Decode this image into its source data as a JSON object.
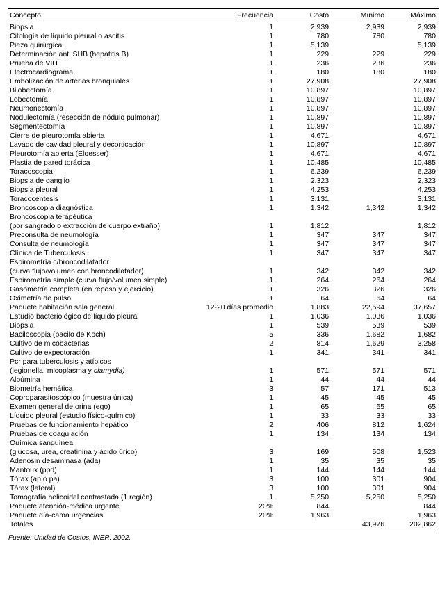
{
  "headers": {
    "concepto": "Concepto",
    "frecuencia": "Frecuencia",
    "costo": "Costo",
    "minimo": "Mínimo",
    "maximo": "Máximo"
  },
  "rows": [
    {
      "concepto": "Biopsia",
      "frecuencia": "1",
      "costo": "2,939",
      "minimo": "2,939",
      "maximo": "2,939"
    },
    {
      "concepto": "Citología de líquido pleural o ascitis",
      "frecuencia": "1",
      "costo": "780",
      "minimo": "780",
      "maximo": "780"
    },
    {
      "concepto": "Pieza quirúrgica",
      "frecuencia": "1",
      "costo": "5,139",
      "minimo": "",
      "maximo": "5,139"
    },
    {
      "concepto": "Determinación anti SHB (hepatitis B)",
      "frecuencia": "1",
      "costo": "229",
      "minimo": "229",
      "maximo": "229"
    },
    {
      "concepto": "Prueba de VIH",
      "frecuencia": "1",
      "costo": "236",
      "minimo": "236",
      "maximo": "236"
    },
    {
      "concepto": "Electrocardiograma",
      "frecuencia": "1",
      "costo": "180",
      "minimo": "180",
      "maximo": "180"
    },
    {
      "concepto": "Embolización de arterias bronquiales",
      "frecuencia": "1",
      "costo": "27,908",
      "minimo": "",
      "maximo": "27,908"
    },
    {
      "concepto": "Bilobectomía",
      "frecuencia": "1",
      "costo": "10,897",
      "minimo": "",
      "maximo": "10,897"
    },
    {
      "concepto": "Lobectomía",
      "frecuencia": "1",
      "costo": "10,897",
      "minimo": "",
      "maximo": "10,897"
    },
    {
      "concepto": "Neumonectomía",
      "frecuencia": "1",
      "costo": "10,897",
      "minimo": "",
      "maximo": "10,897"
    },
    {
      "concepto": "Nodulectomía (resección de nódulo pulmonar)",
      "frecuencia": "1",
      "costo": "10,897",
      "minimo": "",
      "maximo": "10,897"
    },
    {
      "concepto": "Segmentectomía",
      "frecuencia": "1",
      "costo": "10,897",
      "minimo": "",
      "maximo": "10,897"
    },
    {
      "concepto": "Cierre de pleurotomía abierta",
      "frecuencia": "1",
      "costo": "4,671",
      "minimo": "",
      "maximo": "4,671"
    },
    {
      "concepto": "Lavado de cavidad pleural y decorticación",
      "frecuencia": "1",
      "costo": "10,897",
      "minimo": "",
      "maximo": "10,897"
    },
    {
      "concepto": "Pleurotomía abierta (Eloesser)",
      "frecuencia": "1",
      "costo": "4,671",
      "minimo": "",
      "maximo": "4,671"
    },
    {
      "concepto": "Plastia de pared torácica",
      "frecuencia": "1",
      "costo": "10,485",
      "minimo": "",
      "maximo": "10,485"
    },
    {
      "concepto": "Toracoscopia",
      "frecuencia": "1",
      "costo": "6,239",
      "minimo": "",
      "maximo": "6,239"
    },
    {
      "concepto": "Biopsia de ganglio",
      "frecuencia": "1",
      "costo": "2,323",
      "minimo": "",
      "maximo": "2,323"
    },
    {
      "concepto": "Biopsia pleural",
      "frecuencia": "1",
      "costo": "4,253",
      "minimo": "",
      "maximo": "4,253"
    },
    {
      "concepto": "Toracocentesis",
      "frecuencia": "1",
      "costo": "3,131",
      "minimo": "",
      "maximo": "3,131"
    },
    {
      "concepto": "Broncoscopia diagnóstica",
      "frecuencia": "1",
      "costo": "1,342",
      "minimo": "1,342",
      "maximo": "1,342"
    },
    {
      "concepto": "Broncoscopia terapéutica",
      "frecuencia": "",
      "costo": "",
      "minimo": "",
      "maximo": ""
    },
    {
      "concepto": "(por sangrado o extracción de cuerpo extraño)",
      "frecuencia": "1",
      "costo": "1,812",
      "minimo": "",
      "maximo": "1,812"
    },
    {
      "concepto": "Preconsulta de neumología",
      "frecuencia": "1",
      "costo": "347",
      "minimo": "347",
      "maximo": "347"
    },
    {
      "concepto": "Consulta de neumología",
      "frecuencia": "1",
      "costo": "347",
      "minimo": "347",
      "maximo": "347"
    },
    {
      "concepto": "Clínica de Tuberculosis",
      "frecuencia": "1",
      "costo": "347",
      "minimo": "347",
      "maximo": "347"
    },
    {
      "concepto": "Espirometría c/broncodilatador",
      "frecuencia": "",
      "costo": "",
      "minimo": "",
      "maximo": ""
    },
    {
      "concepto": "(curva flujo/volumen con broncodilatador)",
      "frecuencia": "1",
      "costo": "342",
      "minimo": "342",
      "maximo": "342"
    },
    {
      "concepto": "Espirometría simple (curva flujo/volumen simple)",
      "frecuencia": "1",
      "costo": "264",
      "minimo": "264",
      "maximo": "264"
    },
    {
      "concepto": "Gasometría completa (en reposo y ejercicio)",
      "frecuencia": "1",
      "costo": "326",
      "minimo": "326",
      "maximo": "326"
    },
    {
      "concepto": "Oximetría de pulso",
      "frecuencia": "1",
      "costo": "64",
      "minimo": "64",
      "maximo": "64"
    },
    {
      "concepto": "Paquete habitación sala general",
      "frecuencia": "12-20 días promedio",
      "costo": "1,883",
      "minimo": "22,594",
      "maximo": "37,657"
    },
    {
      "concepto": "Estudio bacteriológico de líquido pleural",
      "frecuencia": "1",
      "costo": "1,036",
      "minimo": "1,036",
      "maximo": "1,036"
    },
    {
      "concepto": "Biopsia",
      "frecuencia": "1",
      "costo": "539",
      "minimo": "539",
      "maximo": "539"
    },
    {
      "concepto": "Baciloscopia (bacilo de Koch)",
      "frecuencia": "5",
      "costo": "336",
      "minimo": "1,682",
      "maximo": "1,682"
    },
    {
      "concepto": "Cultivo de micobacterias",
      "frecuencia": "2",
      "costo": "814",
      "minimo": "1,629",
      "maximo": "3,258"
    },
    {
      "concepto": "Cultivo de expectoración",
      "frecuencia": "1",
      "costo": "341",
      "minimo": "341",
      "maximo": "341"
    },
    {
      "concepto": "Pcr para tuberculosis y atípicos",
      "frecuencia": "",
      "costo": "",
      "minimo": "",
      "maximo": ""
    },
    {
      "concepto_prefix": "(legionella, micoplasma y ",
      "concepto_italic": "clamydia)",
      "frecuencia": "1",
      "costo": "571",
      "minimo": "571",
      "maximo": "571",
      "italic_row": true
    },
    {
      "concepto": "Albúmina",
      "frecuencia": "1",
      "costo": "44",
      "minimo": "44",
      "maximo": "44"
    },
    {
      "concepto": "Biometría hemática",
      "frecuencia": "3",
      "costo": "57",
      "minimo": "171",
      "maximo": "513"
    },
    {
      "concepto": "Coproparasitoscópico (muestra única)",
      "frecuencia": "1",
      "costo": "45",
      "minimo": "45",
      "maximo": "45"
    },
    {
      "concepto": "Examen general de orina (ego)",
      "frecuencia": "1",
      "costo": "65",
      "minimo": "65",
      "maximo": "65"
    },
    {
      "concepto": "Líquido pleural (estudio físico-químico)",
      "frecuencia": "1",
      "costo": "33",
      "minimo": "33",
      "maximo": "33"
    },
    {
      "concepto": "Pruebas de funcionamiento hepático",
      "frecuencia": "2",
      "costo": "406",
      "minimo": "812",
      "maximo": "1,624"
    },
    {
      "concepto": "Pruebas de coagulación",
      "frecuencia": "1",
      "costo": "134",
      "minimo": "134",
      "maximo": "134"
    },
    {
      "concepto": "Química sanguínea",
      "frecuencia": "",
      "costo": "",
      "minimo": "",
      "maximo": ""
    },
    {
      "concepto": "(glucosa, urea, creatinina y ácido úrico)",
      "frecuencia": "3",
      "costo": "169",
      "minimo": "508",
      "maximo": "1,523"
    },
    {
      "concepto": "Adenosin desaminasa (ada)",
      "frecuencia": "1",
      "costo": "35",
      "minimo": "35",
      "maximo": "35"
    },
    {
      "concepto": "Mantoux (ppd)",
      "frecuencia": "1",
      "costo": "144",
      "minimo": "144",
      "maximo": "144"
    },
    {
      "concepto": "Tórax (ap o pa)",
      "frecuencia": "3",
      "costo": "100",
      "minimo": "301",
      "maximo": "904"
    },
    {
      "concepto": "Tórax (lateral)",
      "frecuencia": "3",
      "costo": "100",
      "minimo": "301",
      "maximo": "904"
    },
    {
      "concepto": "Tomografía helicoidal contrastada (1 región)",
      "frecuencia": "1",
      "costo": "5,250",
      "minimo": "5,250",
      "maximo": "5,250"
    },
    {
      "concepto": "Paquete atención-médica urgente",
      "frecuencia": "20%",
      "costo": "844",
      "minimo": "",
      "maximo": "844"
    },
    {
      "concepto": "Paquete día-cama urgencias",
      "frecuencia": "20%",
      "costo": "1,963",
      "minimo": "",
      "maximo": "1,963"
    }
  ],
  "totals": {
    "concepto": "Totales",
    "frecuencia": "",
    "costo": "",
    "minimo": "43,976",
    "maximo": "202,862"
  },
  "footnote": "Fuente: Unidad de Costos, INER. 2002."
}
